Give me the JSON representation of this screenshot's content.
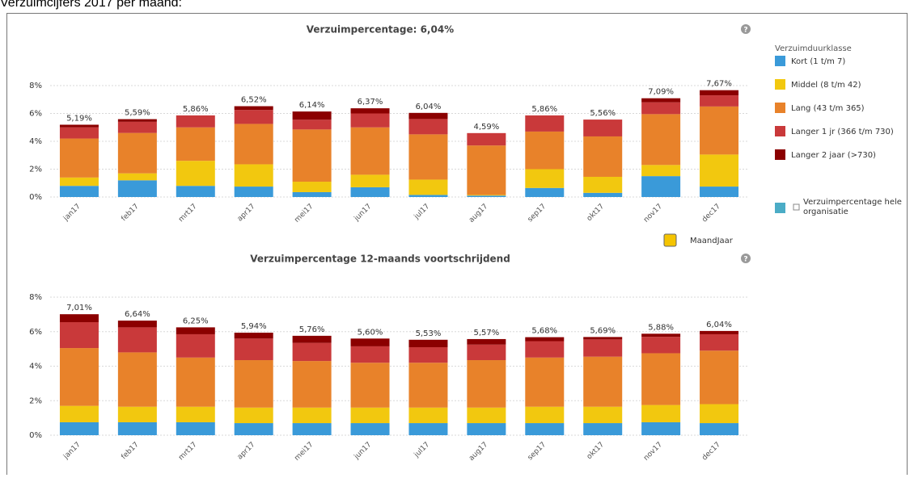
{
  "heading": "Verzuimcijfers 2017 per maand:",
  "toggle_label": "MaandJaar",
  "legend_title": "Verzuimduurklasse",
  "legend_extra": {
    "label": "Verzuimpercentage hele organisatie",
    "color": "#4bacc6"
  },
  "chart_data": [
    {
      "type": "bar",
      "stacked": true,
      "grid": true,
      "title": "Verzuimpercentage: 6,04%",
      "categories": [
        "jan17",
        "feb17",
        "mrt17",
        "apr17",
        "mei17",
        "jun17",
        "jul17",
        "aug17",
        "sep17",
        "okt17",
        "nov17",
        "dec17"
      ],
      "series": [
        {
          "name": "Kort (1 t/m 7)",
          "color": "#3a9ad9",
          "values": [
            0.8,
            1.2,
            0.8,
            0.75,
            0.35,
            0.7,
            0.15,
            0.1,
            0.65,
            0.3,
            1.5,
            0.75
          ]
        },
        {
          "name": "Middel (8 t/m 42)",
          "color": "#f2c80f",
          "values": [
            0.6,
            0.5,
            1.8,
            1.6,
            0.75,
            0.9,
            1.1,
            0.05,
            1.35,
            1.15,
            0.8,
            2.3
          ]
        },
        {
          "name": "Lang (43 t/m 365)",
          "color": "#e8822a",
          "values": [
            2.8,
            2.9,
            2.4,
            2.9,
            3.75,
            3.4,
            3.25,
            3.55,
            2.7,
            2.9,
            3.65,
            3.45
          ]
        },
        {
          "name": "Langer 1 jr (366 t/m 730)",
          "color": "#c9393a",
          "values": [
            0.8,
            0.8,
            0.86,
            1.0,
            0.7,
            1.0,
            1.1,
            0.89,
            1.16,
            1.21,
            0.85,
            0.8
          ]
        },
        {
          "name": "Langer 2 jaar (>730)",
          "color": "#8b0000",
          "values": [
            0.19,
            0.19,
            0,
            0.27,
            0.59,
            0.37,
            0.44,
            0,
            0,
            0,
            0.29,
            0.37
          ]
        }
      ],
      "totals": [
        5.19,
        5.59,
        5.86,
        6.52,
        6.14,
        6.37,
        6.04,
        4.59,
        5.86,
        5.56,
        7.09,
        7.67
      ],
      "total_labels": [
        "5,19%",
        "5,59%",
        "5,86%",
        "6,52%",
        "6,14%",
        "6,37%",
        "6,04%",
        "4,59%",
        "5,86%",
        "5,56%",
        "7,09%",
        "7,67%"
      ],
      "ylim": [
        0,
        8
      ],
      "yticks": [
        {
          "value": 0,
          "label": "0%"
        },
        {
          "value": 2,
          "label": "2%"
        },
        {
          "value": 4,
          "label": "4%"
        },
        {
          "value": 6,
          "label": "6%"
        },
        {
          "value": 8,
          "label": "8%"
        }
      ]
    },
    {
      "type": "bar",
      "stacked": true,
      "grid": true,
      "title": "Verzuimpercentage 12-maands voortschrijdend",
      "categories": [
        "jan17",
        "feb17",
        "mrt17",
        "apr17",
        "mei17",
        "jun17",
        "jul17",
        "aug17",
        "sep17",
        "okt17",
        "nov17",
        "dec17"
      ],
      "series": [
        {
          "color": "#3a9ad9",
          "values": [
            0.75,
            0.75,
            0.75,
            0.7,
            0.7,
            0.7,
            0.7,
            0.7,
            0.7,
            0.7,
            0.75,
            0.7
          ]
        },
        {
          "color": "#f2c80f",
          "values": [
            0.95,
            0.9,
            0.9,
            0.9,
            0.9,
            0.9,
            0.9,
            0.9,
            0.95,
            0.95,
            1.0,
            1.1
          ]
        },
        {
          "color": "#e8822a",
          "values": [
            3.35,
            3.15,
            2.85,
            2.75,
            2.7,
            2.6,
            2.6,
            2.75,
            2.85,
            2.9,
            3.0,
            3.1
          ]
        },
        {
          "color": "#c9393a",
          "values": [
            1.5,
            1.45,
            1.35,
            1.25,
            1.05,
            0.95,
            0.9,
            0.9,
            0.95,
            1.0,
            0.95,
            0.95
          ]
        },
        {
          "color": "#8b0000",
          "values": [
            0.46,
            0.39,
            0.4,
            0.34,
            0.41,
            0.45,
            0.43,
            0.32,
            0.23,
            0.14,
            0.18,
            0.19
          ]
        }
      ],
      "totals": [
        7.01,
        6.64,
        6.25,
        5.94,
        5.76,
        5.6,
        5.53,
        5.57,
        5.68,
        5.69,
        5.88,
        6.04
      ],
      "total_labels": [
        "7,01%",
        "6,64%",
        "6,25%",
        "5,94%",
        "5,76%",
        "5,60%",
        "5,53%",
        "5,57%",
        "5,68%",
        "5,69%",
        "5,88%",
        "6,04%"
      ],
      "ylim": [
        0,
        8
      ],
      "yticks": [
        {
          "value": 0,
          "label": "0%"
        },
        {
          "value": 2,
          "label": "2%"
        },
        {
          "value": 4,
          "label": "4%"
        },
        {
          "value": 6,
          "label": "6%"
        },
        {
          "value": 8,
          "label": "8%"
        }
      ]
    }
  ]
}
